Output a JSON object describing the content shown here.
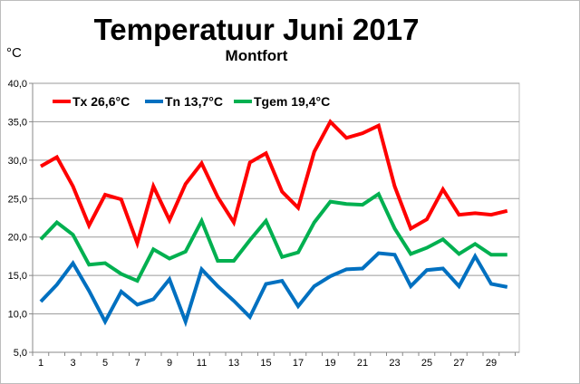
{
  "chart_data": {
    "type": "line",
    "title": "Temperatuur Juni 2017",
    "subtitle": "Montfort",
    "ylabel": "°C",
    "xlabel": "",
    "ylim": [
      5,
      40
    ],
    "yticks": [
      "5,0",
      "10,0",
      "15,0",
      "20,0",
      "25,0",
      "30,0",
      "35,0",
      "40,0"
    ],
    "xticks": [
      "1",
      "3",
      "5",
      "7",
      "9",
      "11",
      "13",
      "15",
      "17",
      "19",
      "21",
      "23",
      "25",
      "27",
      "29"
    ],
    "x": [
      1,
      2,
      3,
      4,
      5,
      6,
      7,
      8,
      9,
      10,
      11,
      12,
      13,
      14,
      15,
      16,
      17,
      18,
      19,
      20,
      21,
      22,
      23,
      24,
      25,
      26,
      27,
      28,
      29,
      30
    ],
    "grid": true,
    "legend_position": "top",
    "series": [
      {
        "name": "Tx 26,6°C",
        "color": "#ff0000",
        "values": [
          29.2,
          30.4,
          26.6,
          21.5,
          25.5,
          24.9,
          19.2,
          26.6,
          22.2,
          26.9,
          29.6,
          25.2,
          21.9,
          29.7,
          30.9,
          25.9,
          23.8,
          31.1,
          35.0,
          32.9,
          33.5,
          34.5,
          26.6,
          21.1,
          22.3,
          26.2,
          22.9,
          23.1,
          22.9,
          23.4
        ]
      },
      {
        "name": "Tn 13,7°C",
        "color": "#0070c0",
        "values": [
          11.6,
          13.8,
          16.6,
          13.0,
          9.0,
          12.9,
          11.2,
          11.9,
          14.5,
          9.0,
          15.8,
          13.6,
          11.7,
          9.6,
          13.9,
          14.3,
          11.0,
          13.6,
          14.9,
          15.8,
          15.9,
          17.9,
          17.7,
          13.6,
          15.7,
          15.9,
          13.6,
          17.5,
          13.9,
          13.5
        ]
      },
      {
        "name": "Tgem 19,4°C",
        "color": "#00b050",
        "values": [
          19.7,
          21.9,
          20.3,
          16.4,
          16.6,
          15.2,
          14.3,
          18.4,
          17.2,
          18.1,
          22.1,
          16.9,
          16.9,
          19.6,
          22.1,
          17.4,
          18.0,
          21.9,
          24.6,
          24.3,
          24.2,
          25.6,
          21.1,
          17.8,
          18.6,
          19.7,
          17.8,
          19.1,
          17.7,
          17.7
        ]
      }
    ]
  }
}
